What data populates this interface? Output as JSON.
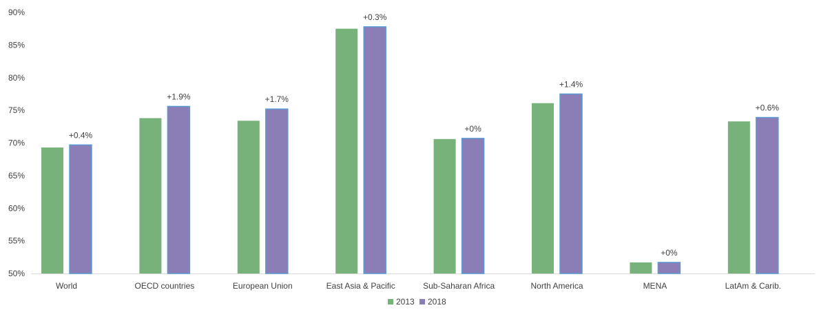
{
  "colors": {
    "series_2013": "#77b27a",
    "series_2018": "#8b7db5",
    "series_2018_stroke": "#5b9bd5",
    "axis": "#d9d9d9",
    "text": "#404040"
  },
  "chart_data": {
    "type": "bar",
    "title": "",
    "xlabel": "",
    "ylabel": "",
    "ylim": [
      50,
      90
    ],
    "y_ticks": [
      50,
      55,
      60,
      65,
      70,
      75,
      80,
      85,
      90
    ],
    "y_tick_labels": [
      "50%",
      "55%",
      "60%",
      "65%",
      "70%",
      "75%",
      "80%",
      "85%",
      "90%"
    ],
    "grid": false,
    "legend_position": "bottom",
    "categories": [
      "World",
      "OECD countries",
      "European Union",
      "East Asia & Pacific",
      "Sub-Saharan Africa",
      "North America",
      "MENA",
      "LatAm & Carib."
    ],
    "series": [
      {
        "name": "2013",
        "values": [
          69.3,
          73.8,
          73.4,
          87.5,
          70.6,
          76.1,
          51.7,
          73.3
        ]
      },
      {
        "name": "2018",
        "values": [
          69.7,
          75.6,
          75.2,
          87.8,
          70.7,
          77.5,
          51.7,
          73.9
        ]
      }
    ],
    "annotations": [
      "+0.4%",
      "+1.9%",
      "+1.7%",
      "+0.3%",
      "+0%",
      "+1.4%",
      "+0%",
      "+0.6%"
    ]
  }
}
